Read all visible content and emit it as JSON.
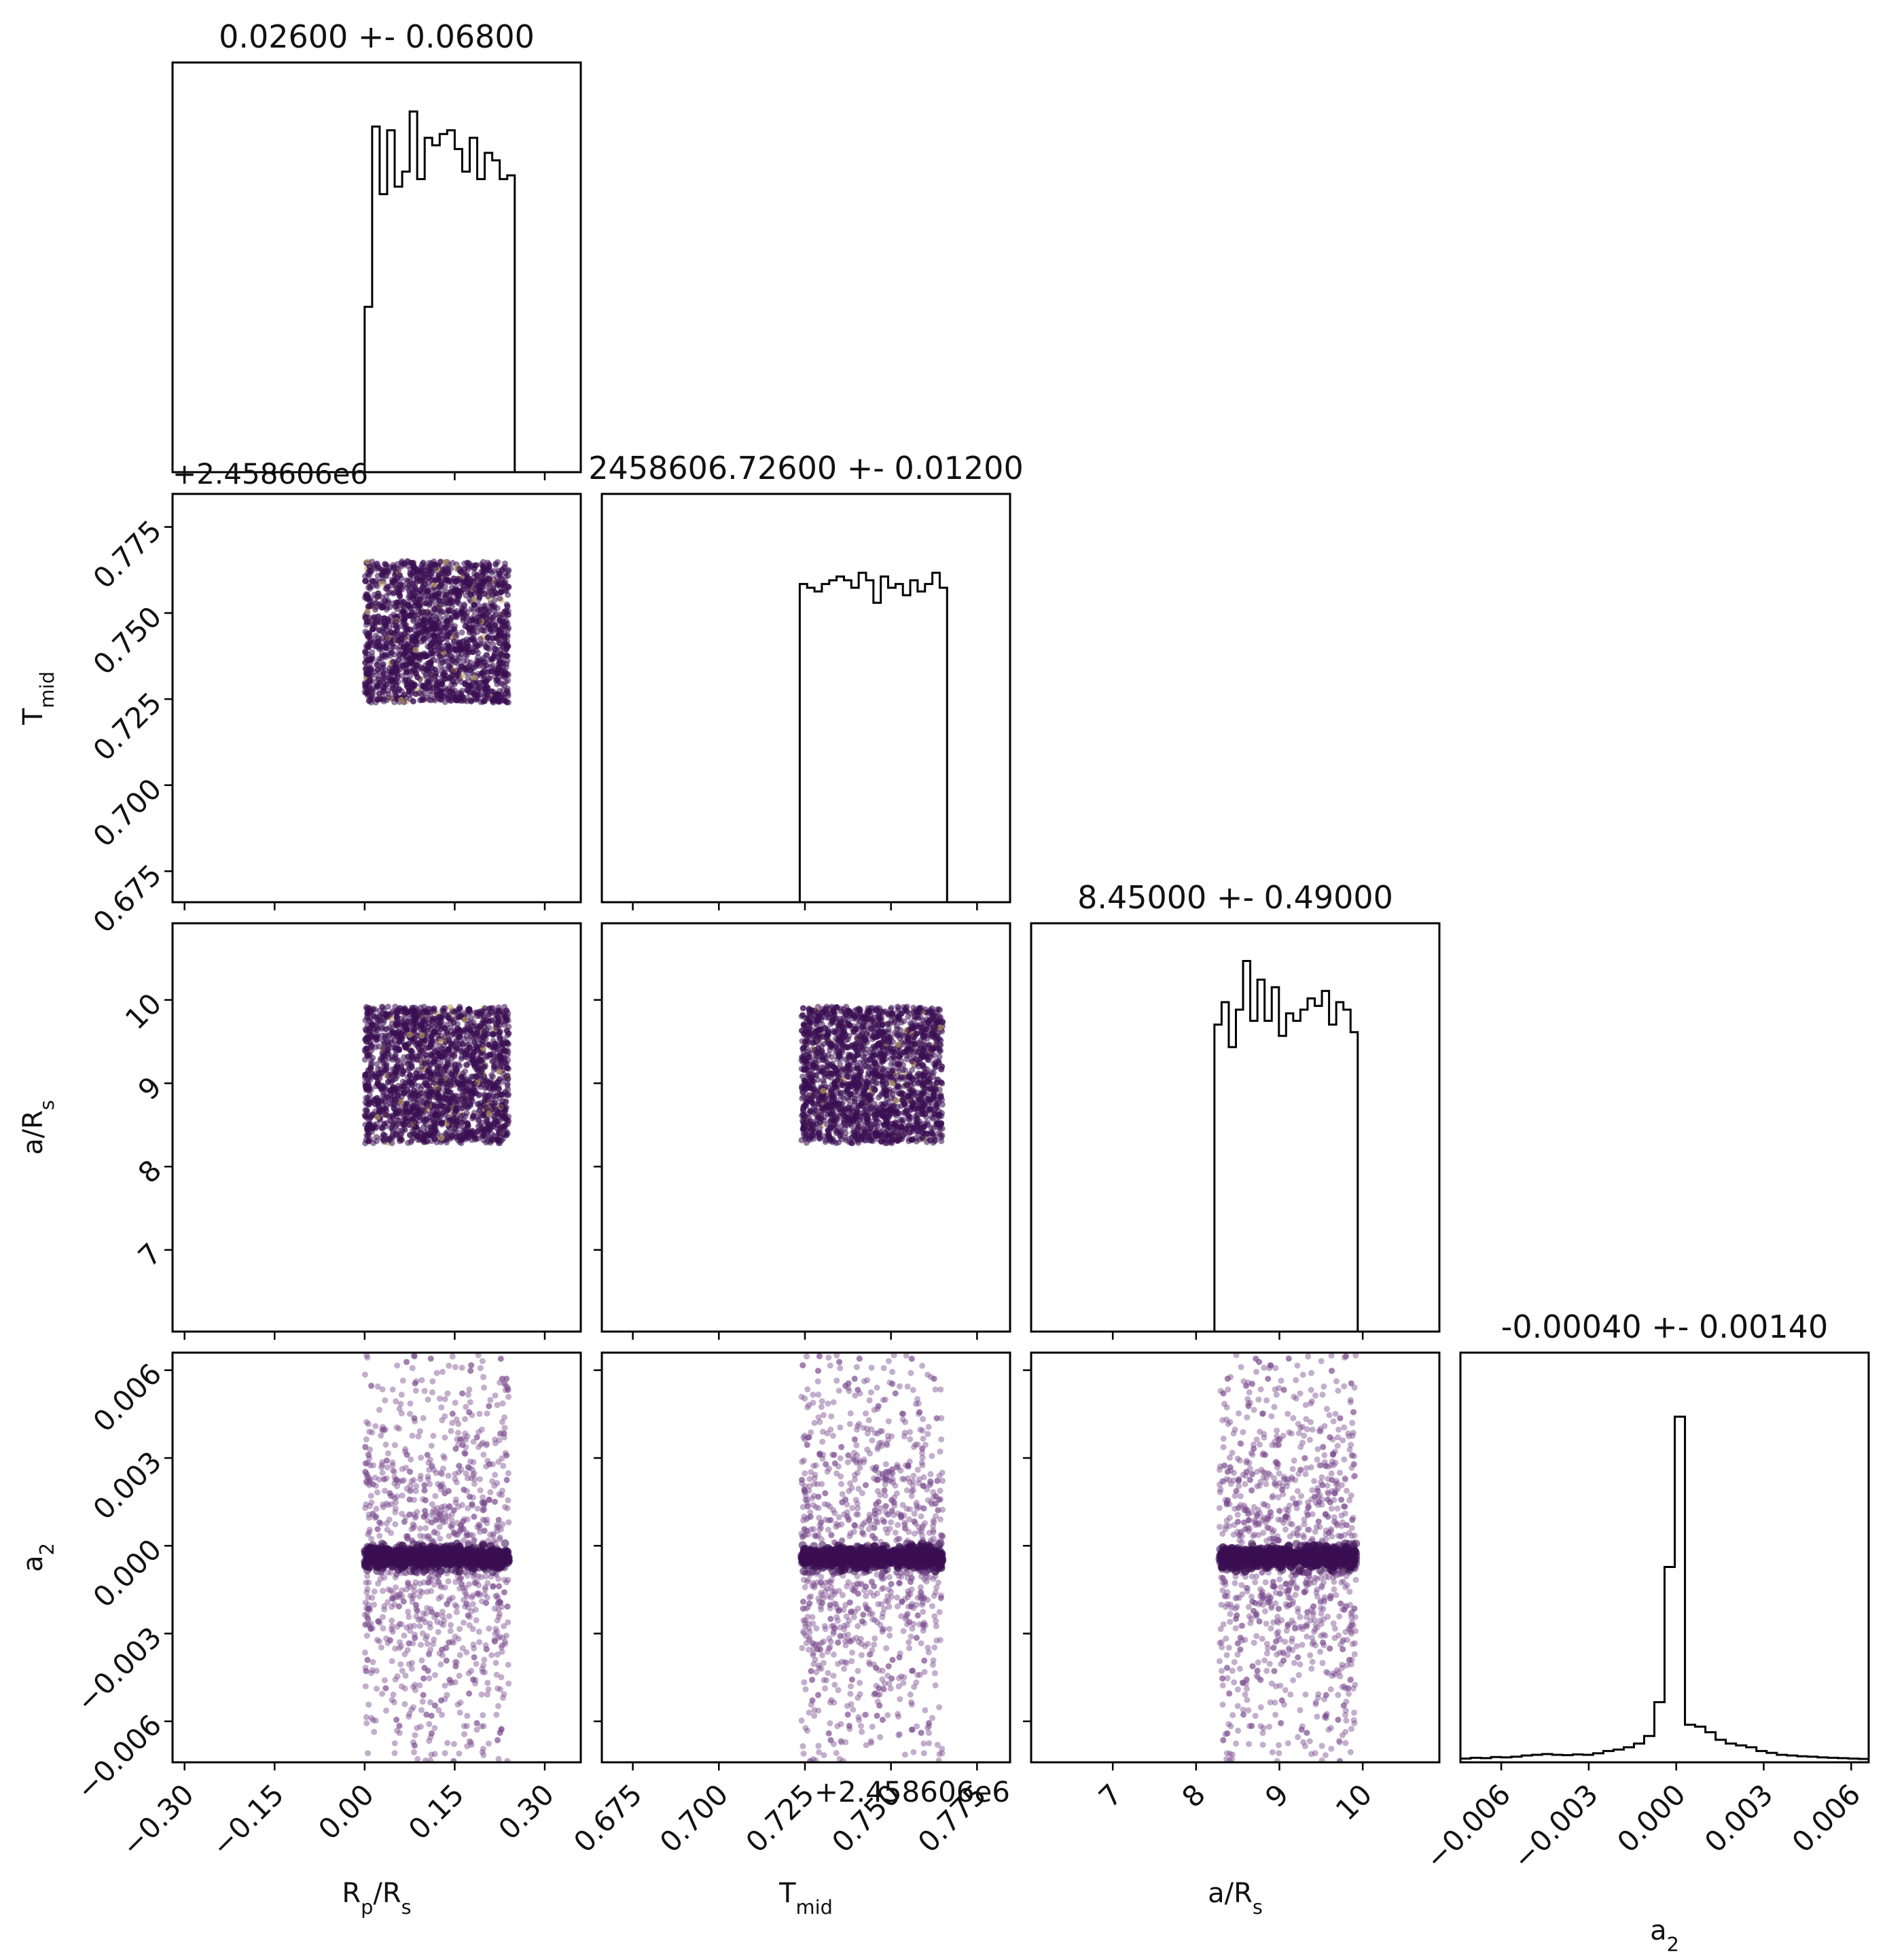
{
  "chart_data": {
    "type": "corner",
    "parameters": [
      {
        "id": "rp",
        "label_main": "R",
        "label_sub": "p",
        "label_rest": "/R",
        "label_sub2": "s",
        "title": "0.02600 +- 0.06800",
        "range": [
          -0.32,
          0.36
        ],
        "ticks": [
          -0.3,
          -0.15,
          0.0,
          0.15,
          0.3
        ],
        "tick_labels": [
          "−0.30",
          "−0.15",
          "0.00",
          "0.15",
          "0.30"
        ],
        "offset_text": "",
        "hist_range": [
          0.0,
          0.25
        ],
        "hist_counts": [
          0.44,
          0.92,
          0.74,
          0.91,
          0.76,
          0.8,
          0.96,
          0.78,
          0.89,
          0.87,
          0.9,
          0.91,
          0.86,
          0.8,
          0.89,
          0.78,
          0.85,
          0.83,
          0.78,
          0.79
        ]
      },
      {
        "id": "tmid",
        "label_main": "T",
        "label_sub": "mid",
        "label_rest": "",
        "label_sub2": "",
        "title": "2458606.72600 +- 0.01200",
        "range": [
          2458606.666,
          2458606.7846
        ],
        "ticks": [
          2458606.675,
          2458606.7,
          2458606.725,
          2458606.75,
          2458606.775
        ],
        "tick_labels": [
          "0.675",
          "0.700",
          "0.725",
          "0.750",
          "0.775"
        ],
        "offset_text": "+2.458606e6",
        "hist_range": [
          2458606.7235,
          2458606.7663
        ],
        "hist_counts": [
          0.85,
          0.84,
          0.83,
          0.85,
          0.86,
          0.87,
          0.86,
          0.84,
          0.88,
          0.86,
          0.8,
          0.87,
          0.84,
          0.85,
          0.82,
          0.86,
          0.83,
          0.85,
          0.88,
          0.84
        ]
      },
      {
        "id": "ars",
        "label_main": "a/R",
        "label_sub": "s",
        "label_rest": "",
        "label_sub2": "",
        "title": "8.45000 +- 0.49000",
        "range": [
          6.02,
          10.92
        ],
        "ticks": [
          7,
          8,
          9,
          10
        ],
        "tick_labels": [
          "7",
          "8",
          "9",
          "10"
        ],
        "offset_text": "",
        "hist_range": [
          8.22,
          9.94
        ],
        "hist_counts": [
          0.82,
          0.88,
          0.76,
          0.86,
          0.99,
          0.83,
          0.94,
          0.83,
          0.92,
          0.79,
          0.85,
          0.83,
          0.86,
          0.89,
          0.87,
          0.91,
          0.82,
          0.88,
          0.86,
          0.8
        ]
      },
      {
        "id": "a2",
        "label_main": "a",
        "label_sub": "2",
        "label_rest": "",
        "label_sub2": "",
        "title": "-0.00040 +- 0.00140",
        "range": [
          -0.0074,
          0.0066
        ],
        "ticks": [
          -0.006,
          -0.003,
          0.0,
          0.003,
          0.006
        ],
        "tick_labels": [
          "−0.006",
          "−0.003",
          "0.000",
          "0.003",
          "0.006"
        ],
        "offset_text": "",
        "hist_range": [
          -0.0074,
          0.0066
        ],
        "hist_counts": [
          0.01,
          0.012,
          0.011,
          0.014,
          0.013,
          0.015,
          0.018,
          0.02,
          0.022,
          0.02,
          0.019,
          0.021,
          0.02,
          0.024,
          0.03,
          0.034,
          0.04,
          0.05,
          0.07,
          0.16,
          0.52,
          0.92,
          0.1,
          0.095,
          0.08,
          0.06,
          0.05,
          0.045,
          0.04,
          0.03,
          0.025,
          0.02,
          0.018,
          0.016,
          0.015,
          0.013,
          0.012,
          0.011,
          0.01,
          0.009
        ]
      }
    ],
    "scatter": {
      "uniform_ranges": {
        "rp": [
          0.0,
          0.24
        ],
        "tmid": [
          2458606.724,
          2458606.765
        ],
        "ars": [
          8.28,
          9.92
        ]
      },
      "a2_core": {
        "center": -0.0004,
        "spread": 0.00015,
        "fraction": 0.45
      },
      "a2_tail": {
        "range": [
          -0.0074,
          0.0066
        ],
        "fraction": 0.55
      },
      "n_points": 2200
    },
    "colors": {
      "line": "#000000",
      "scatter_dense": "#3b0f52",
      "scatter_light": "#7a4b8e",
      "scatter_highlight": "#c5b15e"
    },
    "grid": false,
    "legend": "none"
  }
}
